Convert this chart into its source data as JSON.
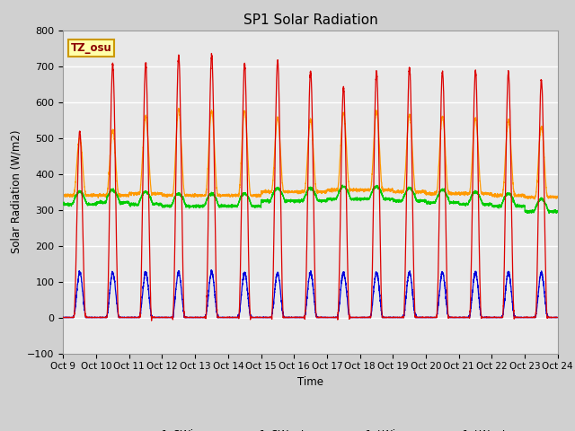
{
  "title": "SP1 Solar Radiation",
  "ylabel": "Solar Radiation (W/m2)",
  "xlabel": "Time",
  "ylim": [
    -100,
    800
  ],
  "yticks": [
    -100,
    0,
    100,
    200,
    300,
    400,
    500,
    600,
    700,
    800
  ],
  "x_tick_labels": [
    "Oct 9",
    "Oct 10",
    "Oct 11",
    "Oct 12",
    "Oct 13",
    "Oct 14",
    "Oct 15",
    "Oct 16",
    "Oct 17",
    "Oct 18",
    "Oct 19",
    "Oct 20",
    "Oct 21",
    "Oct 22",
    "Oct 23",
    "Oct 24"
  ],
  "tz_label": "TZ_osu",
  "fig_bg_color": "#d0d0d0",
  "plot_bg_color": "#e8e8e8",
  "colors": {
    "sp1_SWin": "#dd0000",
    "sp1_SWout": "#0000dd",
    "sp1_LWin": "#00cc00",
    "sp1_LWout": "#ff9900"
  },
  "num_days": 15,
  "points_per_day": 288,
  "SWin_peaks": [
    520,
    705,
    707,
    727,
    730,
    705,
    715,
    685,
    640,
    685,
    696,
    685,
    690,
    684,
    663
  ],
  "LWout_peaks": [
    500,
    520,
    560,
    580,
    575,
    575,
    555,
    550,
    570,
    575,
    565,
    560,
    555,
    550,
    530
  ],
  "LWin_base": [
    315,
    320,
    315,
    310,
    310,
    310,
    325,
    325,
    330,
    330,
    325,
    320,
    315,
    310,
    295
  ],
  "LWout_base": [
    340,
    340,
    345,
    340,
    340,
    340,
    350,
    350,
    355,
    355,
    350,
    345,
    345,
    340,
    335
  ]
}
